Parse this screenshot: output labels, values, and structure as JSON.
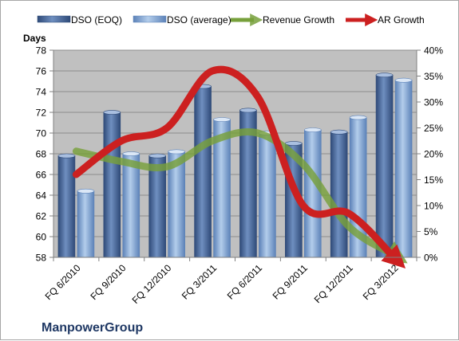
{
  "chart_data": {
    "type": "bar",
    "categories": [
      "FQ 6/2010",
      "FQ 9/2010",
      "FQ 12/2010",
      "FQ 3/2011",
      "FQ 6/2011",
      "FQ 9/2011",
      "FQ 12/2011",
      "FQ 3/2012"
    ],
    "y_title": "Days",
    "ylim": [
      58,
      78
    ],
    "yticks": [
      58,
      60,
      62,
      64,
      66,
      68,
      70,
      72,
      74,
      76,
      78
    ],
    "y2lim": [
      0,
      40
    ],
    "y2ticks": [
      "0%",
      "5%",
      "10%",
      "15%",
      "20%",
      "25%",
      "30%",
      "35%",
      "40%"
    ],
    "grid": true,
    "legend_position": "top",
    "series": [
      {
        "name": "DSO (EOQ)",
        "kind": "bar",
        "axis": "left",
        "color": "#4f6b9a",
        "values": [
          67.8,
          72.0,
          67.8,
          74.5,
          72.2,
          69.0,
          70.1,
          75.6
        ]
      },
      {
        "name": "DSO (average)",
        "kind": "bar",
        "axis": "left",
        "color": "#7fa3d2",
        "values": [
          64.4,
          68.0,
          68.2,
          71.3,
          70.0,
          70.3,
          71.5,
          75.1
        ]
      },
      {
        "name": "Revenue Growth",
        "kind": "line",
        "axis": "right",
        "unit": "%",
        "color": "#77a03b",
        "values": [
          20.5,
          18.5,
          17.5,
          22.5,
          24.0,
          18.0,
          6.0,
          0.5
        ]
      },
      {
        "name": "AR Growth",
        "kind": "line",
        "axis": "right",
        "unit": "%",
        "color": "#cc2020",
        "values": [
          16.0,
          22.5,
          25.0,
          36.0,
          31.0,
          10.0,
          8.5,
          0.0
        ]
      }
    ],
    "annotation": "ManpowerGroup"
  }
}
